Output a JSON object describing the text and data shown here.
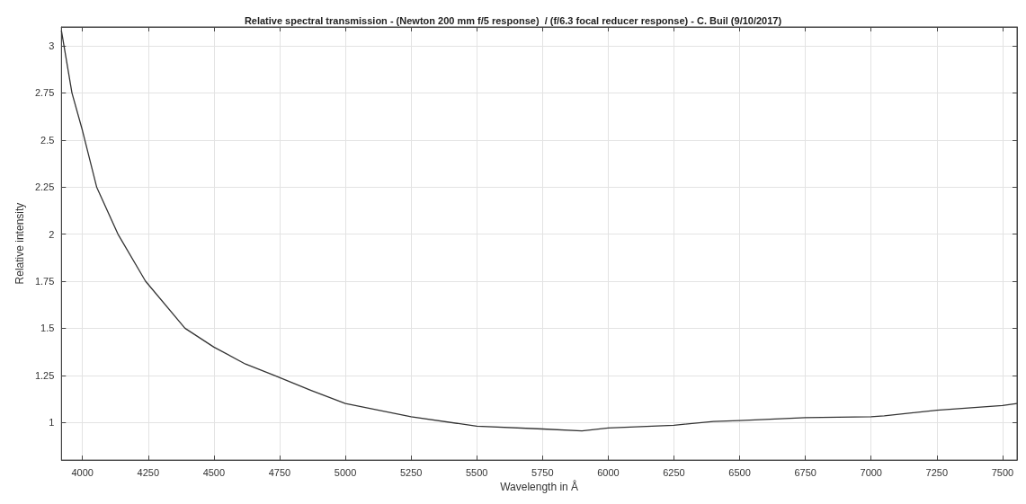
{
  "chart_data": {
    "type": "line",
    "title": "Relative spectral transmission - (Newton 200 mm f/5 response)  / (f/6.3 focal reducer response) - C. Buil (9/10/2017)",
    "xlabel": "Wavelength in Å",
    "ylabel": "Relative intensity",
    "xlim": [
      3920,
      7555
    ],
    "ylim": [
      0.8,
      3.1
    ],
    "xticks": [
      4000,
      4250,
      4500,
      4750,
      5000,
      5250,
      5500,
      5750,
      6000,
      6250,
      6500,
      6750,
      7000,
      7250,
      7500
    ],
    "yticks": [
      1,
      1.25,
      1.5,
      1.75,
      2,
      2.25,
      2.5,
      2.75,
      3
    ],
    "grid": true,
    "marker": "none",
    "line_style": "solid",
    "series": [
      {
        "color": "#333333",
        "x": [
          3920,
          3960,
          4000,
          4054,
          4135,
          4240,
          4390,
          4500,
          4620,
          4730,
          4870,
          5000,
          5250,
          5500,
          5750,
          5900,
          6000,
          6250,
          6400,
          6500,
          6750,
          7000,
          7050,
          7250,
          7500,
          7555
        ],
        "values": [
          3.08,
          2.75,
          2.55,
          2.25,
          2.0,
          1.75,
          1.5,
          1.4,
          1.31,
          1.25,
          1.17,
          1.1,
          1.03,
          0.98,
          0.965,
          0.955,
          0.97,
          0.985,
          1.005,
          1.01,
          1.025,
          1.03,
          1.035,
          1.065,
          1.09,
          1.1
        ]
      }
    ]
  }
}
